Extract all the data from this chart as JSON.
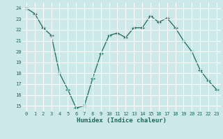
{
  "x": [
    0,
    1,
    2,
    3,
    4,
    5,
    6,
    7,
    8,
    9,
    10,
    11,
    12,
    13,
    14,
    15,
    16,
    17,
    18,
    19,
    20,
    21,
    22,
    23
  ],
  "y": [
    24.0,
    23.5,
    22.2,
    21.5,
    18.0,
    16.5,
    14.8,
    15.0,
    17.5,
    19.8,
    21.5,
    21.7,
    21.3,
    22.2,
    22.2,
    23.3,
    22.7,
    23.1,
    22.2,
    21.0,
    20.0,
    18.3,
    17.3,
    16.5
  ],
  "xlabel": "Humidex (Indice chaleur)",
  "ylim": [
    14.5,
    24.5
  ],
  "xlim": [
    -0.5,
    23.5
  ],
  "yticks": [
    15,
    16,
    17,
    18,
    19,
    20,
    21,
    22,
    23,
    24
  ],
  "xticks": [
    0,
    1,
    2,
    3,
    4,
    5,
    6,
    7,
    8,
    9,
    10,
    11,
    12,
    13,
    14,
    15,
    16,
    17,
    18,
    19,
    20,
    21,
    22,
    23
  ],
  "line_color": "#1a6b5a",
  "marker_color": "#1a6b5a",
  "bg_color": "#cce8e8",
  "grid_color": "#ffffff",
  "grid_minor_color": "#ddeaea",
  "label_color": "#1a6b5a",
  "tick_fontsize": 5.0,
  "xlabel_fontsize": 6.5
}
